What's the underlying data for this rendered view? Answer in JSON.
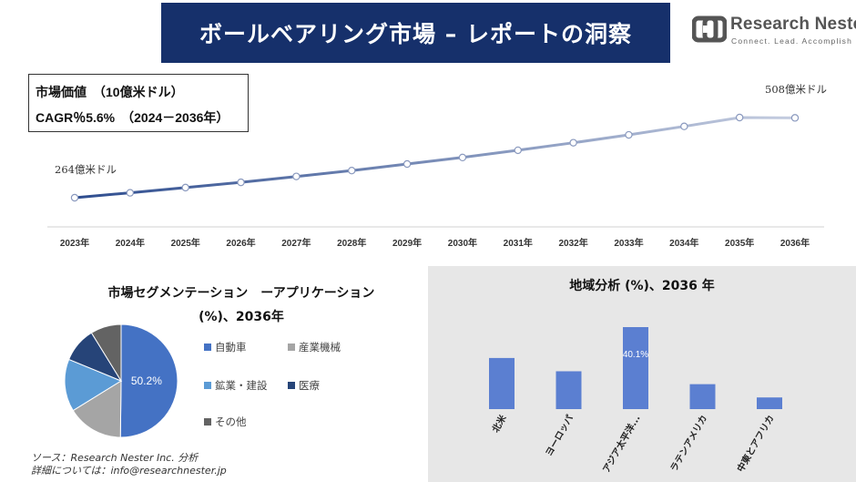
{
  "header": {
    "title": "ボールベアリング市場 – レポートの洞察"
  },
  "logo": {
    "name": "Research Nester",
    "tagline": "Connect. Lead. Accomplish"
  },
  "info": {
    "market_value": "市場価値　（10億米ドル）",
    "cagr": "CAGR％5.6%　（2024－2036年）"
  },
  "segment": {
    "title_line1": "市場セグメンテーション　ーアプリケーション",
    "title_line2": "(%)、2036年"
  },
  "source": {
    "line1": "ソース：Research Nester Inc. 分析",
    "line2": "詳細については：info@researchnester.jp"
  },
  "colors": {
    "header_bg": "#16306b",
    "line_start": "#2e4d8f",
    "line_end": "#c5cde0",
    "bar": "#5b7fd1"
  },
  "chart_data": [
    {
      "type": "line",
      "x": [
        "2023年",
        "2024年",
        "2025年",
        "2026年",
        "2027年",
        "2028年",
        "2029年",
        "2030年",
        "2031年",
        "2032年",
        "2033年",
        "2034年",
        "2035年",
        "2036年"
      ],
      "values": [
        26.4,
        27.9,
        29.5,
        31.1,
        32.9,
        34.7,
        36.7,
        38.7,
        40.9,
        43.2,
        45.6,
        48.2,
        50.9,
        50.8
      ],
      "annotations": [
        {
          "index": 0,
          "text": "264億米ドル"
        },
        {
          "index": 13,
          "text": "508億米ドル"
        }
      ],
      "ylim": [
        0,
        60
      ]
    },
    {
      "type": "pie",
      "labels": [
        "自動車",
        "産業機械",
        "鉱業・建設",
        "医療",
        "その他"
      ],
      "values": [
        50.2,
        16.0,
        15.0,
        10.0,
        8.8
      ],
      "colors": [
        "#4472c4",
        "#a5a5a5",
        "#5b9bd5",
        "#264478",
        "#636363"
      ],
      "data_labels": [
        "50.2%",
        "",
        "",
        "",
        ""
      ]
    },
    {
      "type": "bar",
      "title": "地域分析 (%)、2036 年",
      "categories": [
        "北米",
        "ヨーロッパ",
        "アジア太平洋...",
        "ラテンアメリカ",
        "中東とアフリカ"
      ],
      "values": [
        25.0,
        18.5,
        40.1,
        12.2,
        5.7
      ],
      "data_labels": [
        "",
        "",
        "40.1%",
        "",
        ""
      ],
      "ylim": [
        0,
        45
      ]
    }
  ]
}
